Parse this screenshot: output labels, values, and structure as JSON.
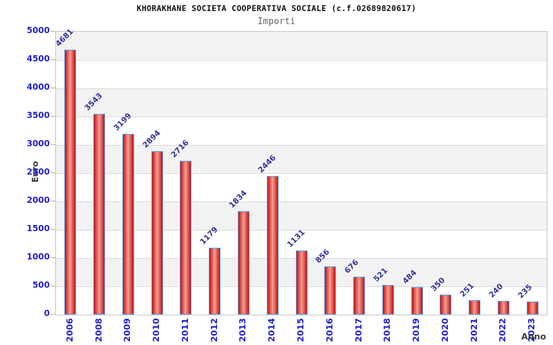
{
  "chart_data": {
    "type": "bar",
    "title": "KHORAKHANE SOCIETA COOPERATIVA SOCIALE (c.f.02689820617)",
    "subtitle": "Importi",
    "xlabel": "Anno",
    "ylabel": "Euro",
    "categories": [
      "2006",
      "2008",
      "2009",
      "2010",
      "2011",
      "2012",
      "2013",
      "2014",
      "2015",
      "2016",
      "2017",
      "2018",
      "2019",
      "2020",
      "2021",
      "2022",
      "2023"
    ],
    "values": [
      4681,
      3543,
      3199,
      2894,
      2716,
      1179,
      1834,
      2446,
      1131,
      856,
      676,
      521,
      484,
      350,
      251,
      240,
      235
    ],
    "ylim": [
      0,
      5000
    ],
    "ytick_step": 500,
    "grid": "horizontal-bands",
    "legend": "none",
    "colors": {
      "bar_fill_edge": "#bb1414",
      "bar_fill_mid": "#f0a292",
      "bar_border": "#58a6e8",
      "tick_label": "#2323cc",
      "value_label": "#333399",
      "axis_title": "#3a3a3a",
      "band_gray": "#f2f2f2",
      "band_white": "#ffffff",
      "gridline": "#d9d9d9"
    }
  }
}
